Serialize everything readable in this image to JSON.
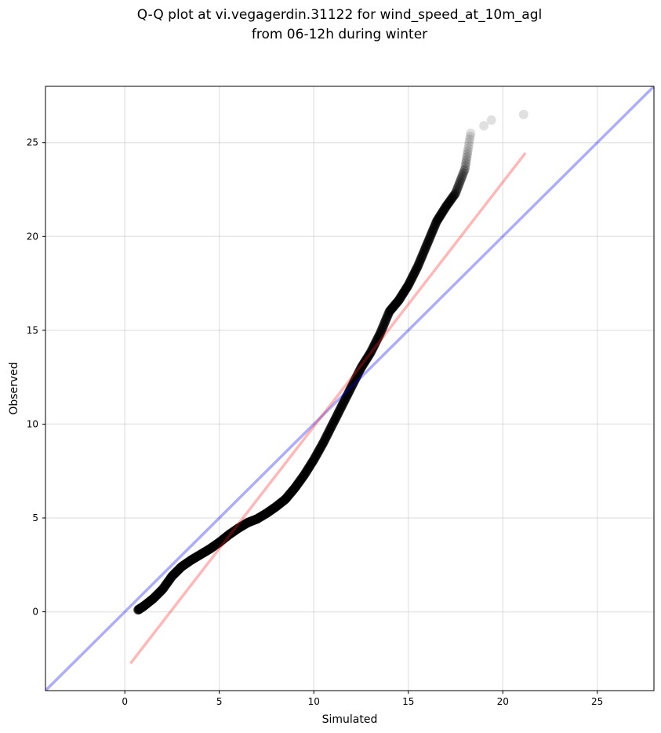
{
  "chart_data": {
    "type": "scatter",
    "title_lines": [
      "Q-Q plot at vi.vegagerdin.31122 for wind_speed_at_10m_agl",
      "from 06-12h during winter"
    ],
    "xlabel": "Simulated",
    "ylabel": "Observed",
    "xlim": [
      -4.2,
      28.0
    ],
    "ylim": [
      -4.2,
      28.0
    ],
    "xticks": [
      0,
      5,
      10,
      15,
      20,
      25
    ],
    "yticks": [
      0,
      5,
      10,
      15,
      20,
      25
    ],
    "grid": true,
    "points_color": "#000000",
    "quantile_anchors": [
      [
        0.7,
        0.1
      ],
      [
        1.0,
        0.3
      ],
      [
        1.5,
        0.7
      ],
      [
        2.0,
        1.2
      ],
      [
        2.5,
        1.9
      ],
      [
        3.0,
        2.4
      ],
      [
        3.5,
        2.75
      ],
      [
        4.0,
        3.05
      ],
      [
        4.5,
        3.35
      ],
      [
        5.0,
        3.7
      ],
      [
        5.5,
        4.1
      ],
      [
        6.0,
        4.45
      ],
      [
        6.5,
        4.75
      ],
      [
        7.0,
        4.95
      ],
      [
        7.5,
        5.25
      ],
      [
        8.0,
        5.6
      ],
      [
        8.5,
        6.0
      ],
      [
        9.0,
        6.6
      ],
      [
        9.5,
        7.3
      ],
      [
        10.0,
        8.1
      ],
      [
        10.5,
        9.0
      ],
      [
        11.0,
        10.0
      ],
      [
        11.5,
        11.0
      ],
      [
        12.0,
        12.0
      ],
      [
        12.5,
        13.0
      ],
      [
        13.0,
        13.8
      ],
      [
        13.5,
        14.8
      ],
      [
        14.0,
        16.0
      ],
      [
        14.5,
        16.6
      ],
      [
        15.0,
        17.4
      ],
      [
        15.5,
        18.4
      ],
      [
        16.0,
        19.6
      ],
      [
        16.5,
        20.8
      ],
      [
        17.0,
        21.6
      ],
      [
        17.5,
        22.3
      ],
      [
        18.0,
        23.6
      ],
      [
        18.3,
        25.5
      ]
    ],
    "outliers": [
      {
        "x": 19.0,
        "y": 25.9
      },
      {
        "x": 19.4,
        "y": 26.2
      },
      {
        "x": 21.1,
        "y": 26.5
      }
    ],
    "reference_lines": [
      {
        "type": "identity",
        "color": "#0000ee",
        "x1": -4.2,
        "y1": -4.2,
        "x2": 28.0,
        "y2": 28.0
      },
      {
        "type": "fit",
        "color": "#ff2222",
        "x1": 0.3,
        "y1": -2.75,
        "x2": 21.2,
        "y2": 24.45
      }
    ]
  }
}
